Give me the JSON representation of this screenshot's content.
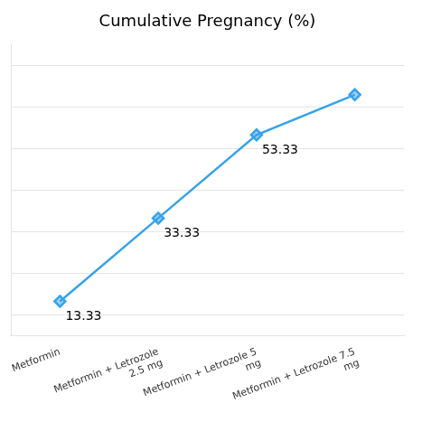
{
  "chart_data": {
    "type": "line",
    "title": "Cumulative Pregnancy (%)",
    "categories": [
      "Metformin",
      "Metformin + Letrozole\n2.5 mg",
      "Metformin + Letrozole 5\nmg",
      "Metformin + Letrozole 7.5\nmg"
    ],
    "values": [
      13.33,
      33.33,
      53.33,
      63.0
    ],
    "marker": "diamond",
    "annotations": [
      {
        "text": "13.33",
        "x": "Metformin",
        "y": 13.33
      },
      {
        "text": "33.33",
        "x": "Metformin + Letrozole\n2.5 mg",
        "y": 33.33
      },
      {
        "text": "53.33",
        "x": "Metformin + Letrozole 5\nmg",
        "y": 53.33
      }
    ],
    "ylim": [
      5,
      75
    ],
    "yticks": [
      10,
      20,
      30,
      40,
      50,
      60,
      70
    ],
    "grid": true,
    "tick_labels": "x"
  }
}
